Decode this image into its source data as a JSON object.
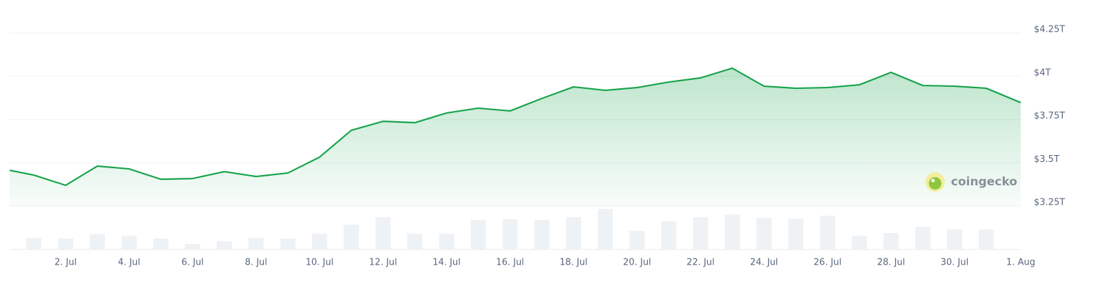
{
  "chart_data": {
    "type": "line",
    "categories": [
      null,
      null,
      "2. Jul",
      null,
      "4. Jul",
      null,
      "6. Jul",
      null,
      "8. Jul",
      null,
      "10. Jul",
      null,
      "12. Jul",
      null,
      "14. Jul",
      null,
      "16. Jul",
      null,
      "18. Jul",
      null,
      "20. Jul",
      null,
      "22. Jul",
      null,
      "24. Jul",
      null,
      "26. Jul",
      null,
      "28. Jul",
      null,
      "30. Jul",
      null,
      "1. Aug"
    ],
    "series": [
      {
        "type": "line",
        "color": "#16a34a",
        "values": [
          3.457,
          3.429,
          3.37,
          3.481,
          3.465,
          3.405,
          3.409,
          3.449,
          3.421,
          3.441,
          3.533,
          3.688,
          3.74,
          3.732,
          3.788,
          3.816,
          3.8,
          3.872,
          3.939,
          3.919,
          3.935,
          3.967,
          3.991,
          4.047,
          3.943,
          3.931,
          3.935,
          3.951,
          4.023,
          3.947,
          3.943,
          3.931,
          3.848
        ]
      },
      {
        "type": "bar",
        "axis": "y2",
        "color": "#eff2f5",
        "values": [
          null,
          17,
          16,
          22,
          20,
          16,
          8,
          12,
          17,
          16,
          23,
          36,
          47,
          23,
          23,
          43,
          44,
          43,
          47,
          59,
          27,
          41,
          47,
          51,
          46,
          45,
          49,
          20,
          24,
          33,
          29,
          29,
          null
        ]
      }
    ],
    "ylim": [
      3.25,
      4.25
    ],
    "yticks": [
      {
        "value": 3.25,
        "label": "$3.25T"
      },
      {
        "value": 3.5,
        "label": "$3.5T"
      },
      {
        "value": 3.75,
        "label": "$3.75T"
      },
      {
        "value": 4,
        "label": "$4T"
      },
      {
        "value": 4.25,
        "label": "$4.25T"
      }
    ],
    "y2lim": [
      0,
      60
    ],
    "grid": true,
    "watermark": "coingecko"
  }
}
